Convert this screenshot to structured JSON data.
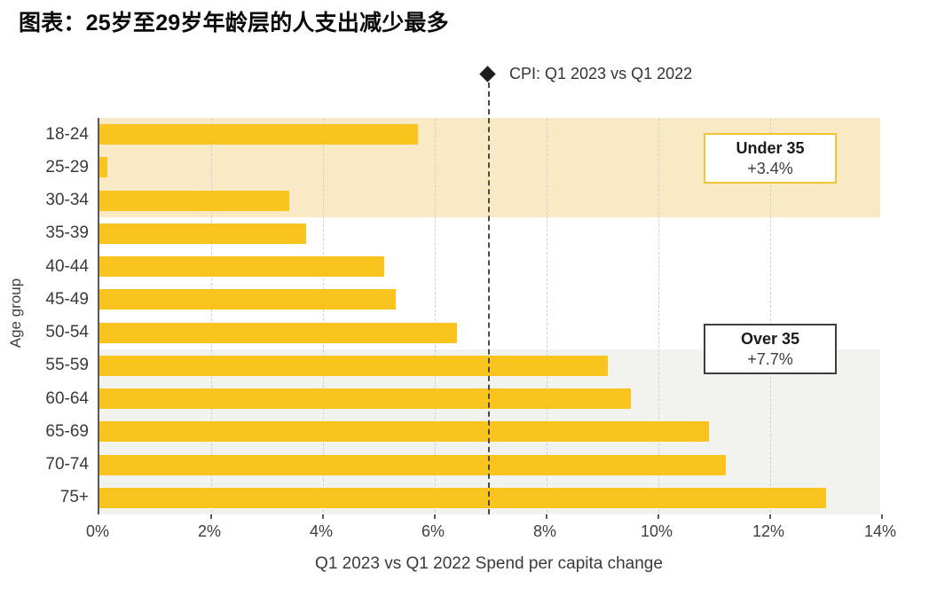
{
  "page": {
    "title": "图表：25岁至29岁年龄层的人支出减少最多"
  },
  "legend": {
    "marker": "diamond-icon",
    "marker_color": "#1e1e1e",
    "label": "CPI: Q1 2023 vs Q1 2022"
  },
  "annotations": {
    "under35": {
      "title": "Under 35",
      "value": "+3.4%",
      "border_color": "#f0c330"
    },
    "over35": {
      "title": "Over 35",
      "value": "+7.7%",
      "border_color": "#3d3d3d"
    }
  },
  "chart_data": {
    "type": "bar",
    "orientation": "horizontal",
    "title": "图表：25岁至29岁年龄层的人支出减少最多",
    "categories": [
      "18-24",
      "25-29",
      "30-34",
      "35-39",
      "40-44",
      "45-49",
      "50-54",
      "55-59",
      "60-64",
      "65-69",
      "70-74",
      "75+"
    ],
    "values": [
      5.7,
      0.15,
      3.4,
      3.7,
      5.1,
      5.3,
      6.4,
      9.1,
      9.5,
      10.9,
      11.2,
      13.0
    ],
    "xlabel": "Q1 2023 vs Q1 2022 Spend per capita change",
    "ylabel": "Age group",
    "xlim": [
      0,
      14
    ],
    "xticks": [
      0,
      2,
      4,
      6,
      8,
      10,
      12,
      14
    ],
    "xtick_suffix": "%",
    "grid": "vertical dashed at 2% intervals",
    "legend_position": "top",
    "bar_color": "#fac41e",
    "reference_line": {
      "value": 7,
      "label": "CPI: Q1 2023 vs Q1 2022",
      "style": "dashed",
      "color": "#4a4a4a"
    },
    "bands": [
      {
        "label": "Under 35",
        "row_start": 0,
        "row_end": 2,
        "color": "#fae9c5",
        "value": "+3.4%"
      },
      {
        "label": "Over 35",
        "row_start": 7,
        "row_end": 11,
        "color": "#f2f2ef",
        "value": "+7.7%"
      }
    ]
  }
}
